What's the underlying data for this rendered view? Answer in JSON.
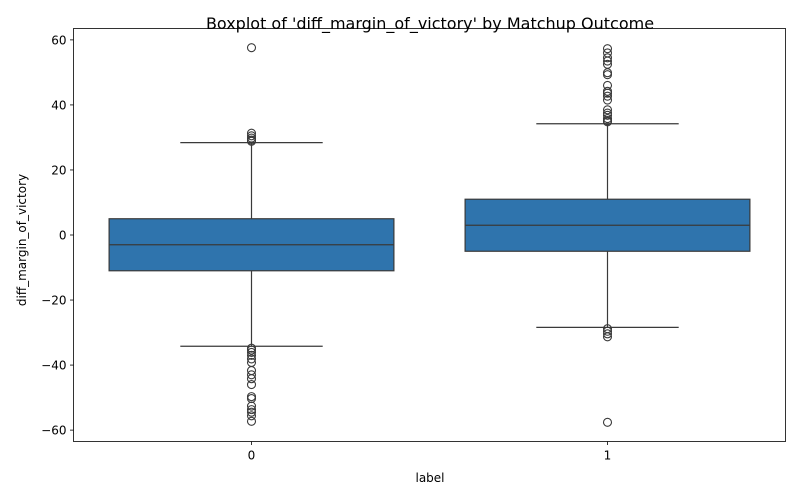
{
  "chart_data": {
    "type": "boxplot",
    "title": "Boxplot of 'diff_margin_of_victory' by Matchup Outcome",
    "xlabel": "label",
    "ylabel": "diff_margin_of_victory",
    "categories": [
      "0",
      "1"
    ],
    "ylim": [
      -63.5,
      63.5
    ],
    "yticks": [
      -60,
      -40,
      -20,
      0,
      20,
      40,
      60
    ],
    "ytick_labels": [
      "−60",
      "−40",
      "−20",
      "0",
      "20",
      "40",
      "60"
    ],
    "grid": false,
    "box_color": "#2f74ad",
    "line_color": "#3a3a3a",
    "boxes": [
      {
        "category": "0",
        "whisker_low": -34.2,
        "q1": -11,
        "median": -3,
        "q3": 5,
        "whisker_high": 28.4,
        "outliers": [
          57.6,
          31.3,
          30.5,
          29.8,
          29.2,
          28.8,
          -34.8,
          -35.4,
          -36.1,
          -37.0,
          -38.1,
          -39.2,
          -41.7,
          -43.0,
          -44.2,
          -46.0,
          -49.7,
          -50.3,
          -52.6,
          -53.7,
          -54.5,
          -55.6,
          -57.3
        ]
      },
      {
        "category": "1",
        "whisker_low": -28.4,
        "q1": -5,
        "median": 3,
        "q3": 11,
        "whisker_high": 34.2,
        "outliers": [
          57.3,
          56.0,
          54.5,
          53.5,
          52.5,
          49.9,
          49.3,
          46.0,
          44.2,
          43.6,
          42.7,
          41.5,
          38.5,
          37.5,
          36.8,
          35.8,
          35.2,
          34.8,
          -28.8,
          -29.6,
          -30.4,
          -31.3,
          -57.6
        ]
      }
    ]
  }
}
